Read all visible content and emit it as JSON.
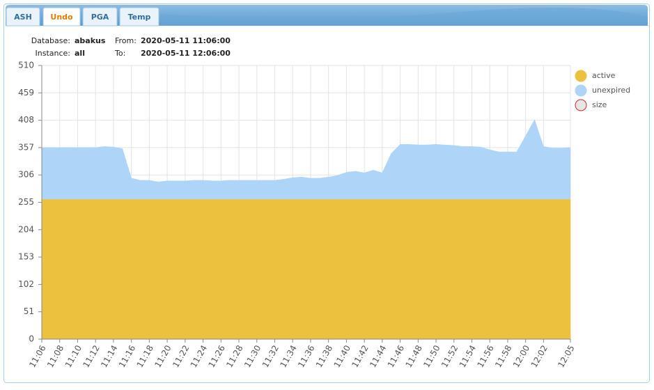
{
  "tabs": [
    "ASH",
    "Undo",
    "PGA",
    "Temp"
  ],
  "active_tab": 1,
  "info": {
    "database_label": "Database:",
    "database": "abakus",
    "instance_label": "Instance:",
    "instance": "all",
    "from_label": "From:",
    "from": "2020-05-11 11:06:00",
    "to_label": "To:",
    "to": "2020-05-11 12:06:00"
  },
  "chart_data": {
    "type": "stacked_area",
    "categories": [
      "11:06",
      null,
      "11:08",
      null,
      "11:10",
      null,
      "11:12",
      null,
      "11:14",
      null,
      "11:16",
      null,
      "11:18",
      null,
      "11:20",
      null,
      "11:22",
      null,
      "11:24",
      null,
      "11:26",
      null,
      "11:28",
      null,
      "11:30",
      null,
      "11:32",
      null,
      "11:34",
      null,
      "11:36",
      null,
      "11:38",
      null,
      "11:40",
      null,
      "11:42",
      null,
      "11:44",
      null,
      "11:46",
      null,
      "11:48",
      null,
      "11:50",
      null,
      "11:52",
      null,
      "11:54",
      null,
      "11:56",
      null,
      "11:58",
      null,
      "12:00",
      null,
      "12:02",
      null,
      null,
      "12:05"
    ],
    "series": [
      {
        "name": "active",
        "color": "#ecc13e",
        "values": [
          261,
          261,
          261,
          261,
          261,
          261,
          261,
          261,
          261,
          261,
          261,
          261,
          261,
          261,
          261,
          261,
          261,
          261,
          261,
          261,
          261,
          261,
          261,
          261,
          261,
          261,
          261,
          261,
          261,
          261,
          261,
          261,
          261,
          261,
          261,
          261,
          261,
          261,
          261,
          261,
          261,
          261,
          261,
          261,
          261,
          261,
          261,
          261,
          261,
          261,
          261,
          261,
          261,
          261,
          261,
          261,
          261,
          261,
          261,
          261
        ]
      },
      {
        "name": "unexpired",
        "color": "#aed5f7",
        "values": [
          96,
          96,
          96,
          96,
          96,
          96,
          96,
          98,
          97,
          94,
          39,
          35,
          35,
          32,
          34,
          34,
          34,
          35,
          35,
          34,
          34,
          35,
          35,
          35,
          35,
          35,
          35,
          37,
          40,
          41,
          39,
          39,
          41,
          44,
          50,
          52,
          49,
          54,
          49,
          85,
          102,
          102,
          101,
          101,
          102,
          101,
          100,
          98,
          98,
          97,
          92,
          88,
          88,
          88,
          118,
          148,
          98,
          95,
          95,
          96
        ]
      },
      {
        "name": "size",
        "color": "#e6e6e6",
        "edge": "#d62728"
      }
    ],
    "ylim": [
      0,
      510
    ],
    "yticks": [
      0,
      51,
      102,
      153,
      204,
      255,
      306,
      357,
      408,
      459,
      510
    ],
    "grid": true,
    "legend": "right"
  }
}
